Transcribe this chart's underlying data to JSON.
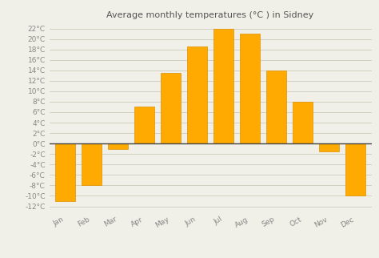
{
  "title": "Average monthly temperatures (°C ) in Sidney",
  "months": [
    "Jan",
    "Feb",
    "Mar",
    "Apr",
    "May",
    "Jun",
    "Jul",
    "Aug",
    "Sep",
    "Oct",
    "Nov",
    "Dec"
  ],
  "values": [
    -11,
    -8,
    -1,
    7,
    13.5,
    18.5,
    22,
    21,
    14,
    8,
    -1.5,
    -10
  ],
  "bar_color": "#FFAA00",
  "bar_edge_color": "#E09000",
  "background_color": "#f0f0e8",
  "plot_bg_color": "#f0f0e8",
  "grid_color": "#ccccbb",
  "zero_line_color": "#444444",
  "title_color": "#555555",
  "tick_color": "#888888",
  "ylim": [
    -13,
    23
  ],
  "yticks": [
    -12,
    -10,
    -8,
    -6,
    -4,
    -2,
    0,
    2,
    4,
    6,
    8,
    10,
    12,
    14,
    16,
    18,
    20,
    22
  ],
  "title_fontsize": 8,
  "tick_fontsize": 6.5
}
